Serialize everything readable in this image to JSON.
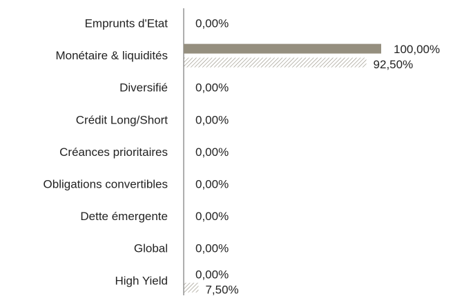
{
  "chart_data": {
    "type": "bar",
    "orientation": "horizontal",
    "categories": [
      "Emprunts d'Etat",
      "Monétaire & liquidités",
      "Diversifié",
      "Crédit Long/Short",
      "Créances prioritaires",
      "Obligations convertibles",
      "Dette émergente",
      "Global",
      "High Yield"
    ],
    "series": [
      {
        "color": "#958f7f",
        "pattern": "solid",
        "values": [
          0,
          100,
          0,
          0,
          0,
          0,
          0,
          0,
          0
        ],
        "value_labels": [
          "0,00%",
          "100,00%",
          "0,00%",
          "0,00%",
          "0,00%",
          "0,00%",
          "0,00%",
          "0,00%",
          "0,00%"
        ]
      },
      {
        "color": "#8f8a7c",
        "pattern": "hatch",
        "values": [
          null,
          92.5,
          null,
          null,
          null,
          null,
          null,
          null,
          7.5
        ],
        "value_labels": [
          null,
          "92,50%",
          null,
          null,
          null,
          null,
          null,
          null,
          "7,50%"
        ]
      }
    ],
    "xlim": [
      0,
      100
    ]
  }
}
